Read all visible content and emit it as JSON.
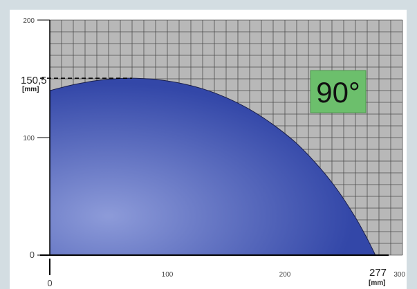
{
  "chart_data": {
    "type": "area",
    "title": "",
    "xlabel": "",
    "ylabel": "",
    "xlim": [
      0,
      300
    ],
    "ylim": [
      0,
      200
    ],
    "x_ticks": [
      "0",
      "100",
      "200",
      "300"
    ],
    "y_ticks": [
      "0",
      "100",
      "200"
    ],
    "grid": true,
    "angle_label": "90°",
    "max_height": {
      "label": "150,5",
      "unit": "[mm]",
      "x": 70,
      "y": 150.5
    },
    "max_reach": {
      "label": "277",
      "unit": "[mm]",
      "x": 277,
      "y": 0
    },
    "series": [
      {
        "x": [
          0,
          20,
          40,
          60,
          70,
          90,
          110,
          130,
          150,
          170,
          190,
          210,
          230,
          245,
          260,
          270,
          277
        ],
        "y": [
          140,
          145,
          148.5,
          150.3,
          150.5,
          149.5,
          146.5,
          141.5,
          134,
          124,
          111,
          95,
          74,
          55,
          32,
          14,
          0
        ]
      }
    ],
    "colors": {
      "background": "#d3dde2",
      "plot_bg": "#b8b8b8",
      "grid": "#4d4d4d",
      "fill_light": "#8d9bd9",
      "fill_dark": "#3347a8",
      "badge": "#6cbf6c"
    }
  }
}
